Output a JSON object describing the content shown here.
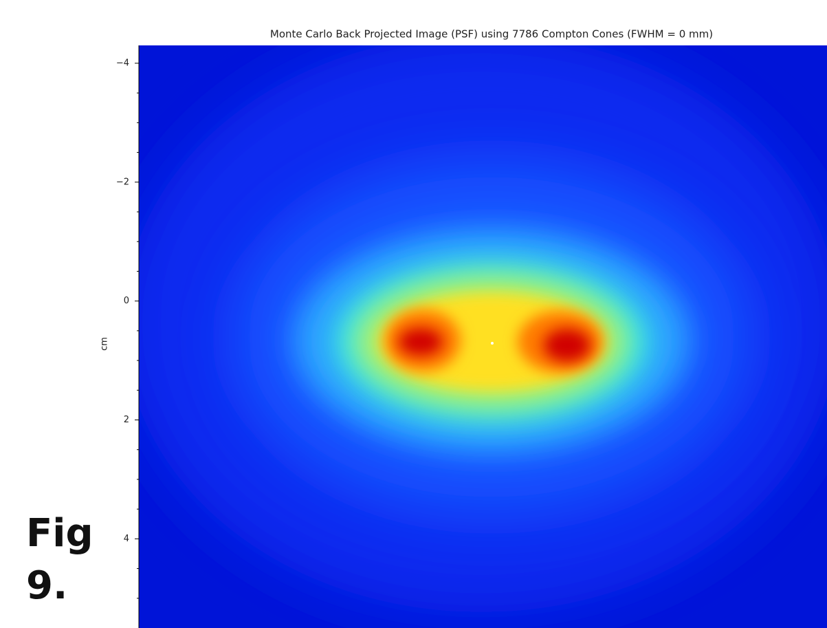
{
  "chart_data": {
    "type": "heatmap",
    "title": "Monte Carlo Back Projected Image (PSF) using 7786 Compton Cones (FWHM = 0 mm)",
    "y_label": "cm",
    "ylim": [
      -4.3,
      5.5
    ],
    "y_inverted": true,
    "yticks": [
      {
        "value": -4,
        "label": "−4"
      },
      {
        "value": -2,
        "label": "−2"
      },
      0,
      2,
      4
    ],
    "yminorticks": [
      -3.5,
      -3,
      -2.5,
      -1.5,
      -1,
      -0.5,
      0.5,
      1,
      1.5,
      2.5,
      3,
      3.5,
      4.5,
      5
    ],
    "colormap": "jet"
  },
  "caption": "Fig 9."
}
